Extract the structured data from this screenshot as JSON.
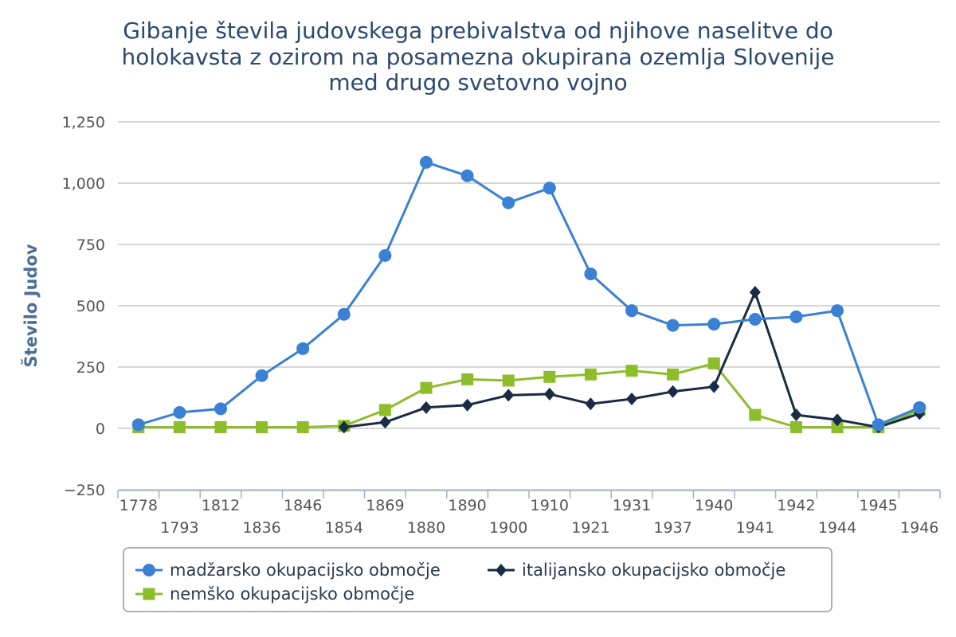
{
  "chart_data": {
    "type": "line",
    "title": [
      "Gibanje števila judovskega prebivalstva od njihove naselitve do",
      "holokavsta z ozirom na posamezna okupirana ozemlja Slovenije",
      "med drugo svetovno vojno"
    ],
    "xlabel": "",
    "ylabel": "Število Judov",
    "categories": [
      "1778",
      "1793",
      "1812",
      "1836",
      "1846",
      "1854",
      "1869",
      "1880",
      "1890",
      "1900",
      "1910",
      "1921",
      "1931",
      "1937",
      "1940",
      "1941",
      "1942",
      "1944",
      "1945",
      "1946"
    ],
    "yticks": [
      "−250",
      "0",
      "250",
      "500",
      "750",
      "1,000",
      "1,250"
    ],
    "yticks_values": [
      -250,
      0,
      250,
      500,
      750,
      1000,
      1250
    ],
    "ylim": [
      -250,
      1250
    ],
    "grid": true,
    "legend_position": "bottom",
    "series": [
      {
        "name": "madžarsko okupacijsko območje",
        "color": "#3a80d4",
        "marker": "circle",
        "values": [
          15,
          65,
          80,
          215,
          325,
          465,
          705,
          1085,
          1030,
          920,
          980,
          630,
          480,
          420,
          425,
          445,
          455,
          480,
          15,
          85
        ]
      },
      {
        "name": "italijansko okupacijsko območje",
        "color": "#1a2b45",
        "marker": "diamond",
        "values": [
          null,
          null,
          null,
          null,
          null,
          5,
          25,
          85,
          95,
          135,
          140,
          100,
          120,
          150,
          170,
          555,
          55,
          35,
          5,
          60
        ]
      },
      {
        "name": "nemško okupacijsko območje",
        "color": "#8dbd2a",
        "marker": "square",
        "values": [
          5,
          5,
          5,
          5,
          5,
          10,
          75,
          165,
          200,
          195,
          210,
          220,
          235,
          220,
          265,
          55,
          5,
          5,
          5,
          75
        ]
      }
    ]
  }
}
